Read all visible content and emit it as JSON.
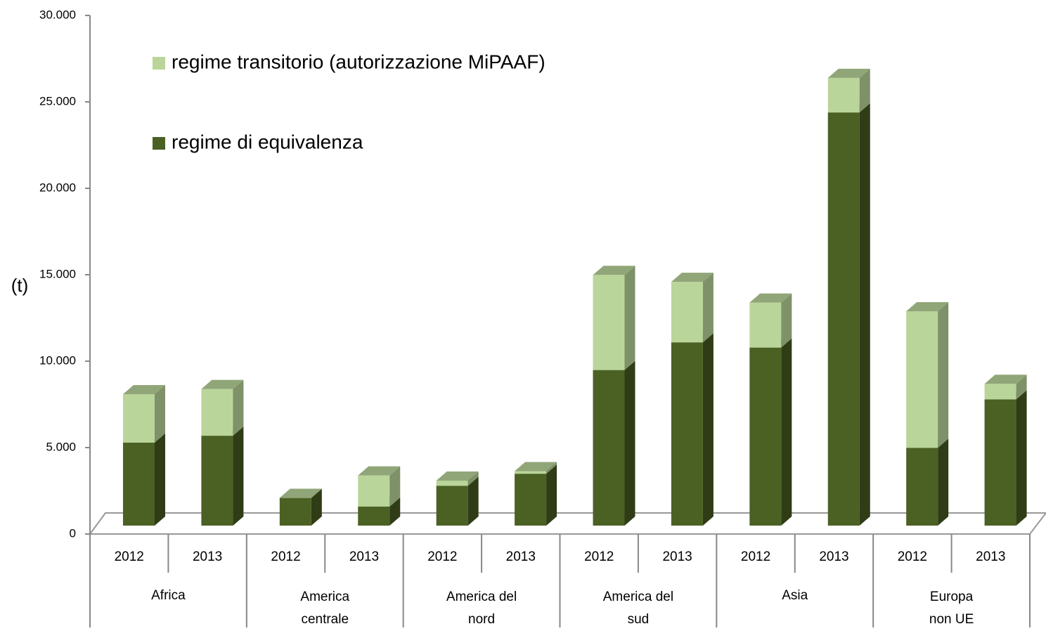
{
  "chart_data": {
    "type": "bar3d_stacked",
    "y_label": "(t)",
    "groups": [
      "Africa",
      "America\ncentrale",
      "America del\nnord",
      "America del\nsud",
      "Asia",
      "Europa\nnon UE"
    ],
    "categories": [
      "2012",
      "2013",
      "2012",
      "2013",
      "2012",
      "2013",
      "2012",
      "2013",
      "2012",
      "2013",
      "2012",
      "2013"
    ],
    "series": [
      {
        "name": "regime di equivalenza",
        "color": "#4b6124",
        "values": [
          4800,
          5200,
          1600,
          1100,
          2300,
          3000,
          9000,
          10600,
          10300,
          23900,
          4500,
          7300
        ]
      },
      {
        "name": "regime transitorio (autorizzazione MiPAAF)",
        "color": "#bad59a",
        "values": [
          2800,
          2700,
          0,
          1800,
          300,
          150,
          5500,
          3500,
          2600,
          2000,
          7900,
          900
        ]
      }
    ],
    "ylim": [
      0,
      30000
    ],
    "yticks": [
      0,
      {
        "value": 5000,
        "label": "5.000"
      },
      {
        "value": 10000,
        "label": "10.000"
      },
      {
        "value": 15000,
        "label": "15.000"
      },
      {
        "value": 20000,
        "label": "20.000"
      },
      {
        "value": 25000,
        "label": "25.000"
      },
      {
        "value": 30000,
        "label": "30.000"
      }
    ]
  }
}
